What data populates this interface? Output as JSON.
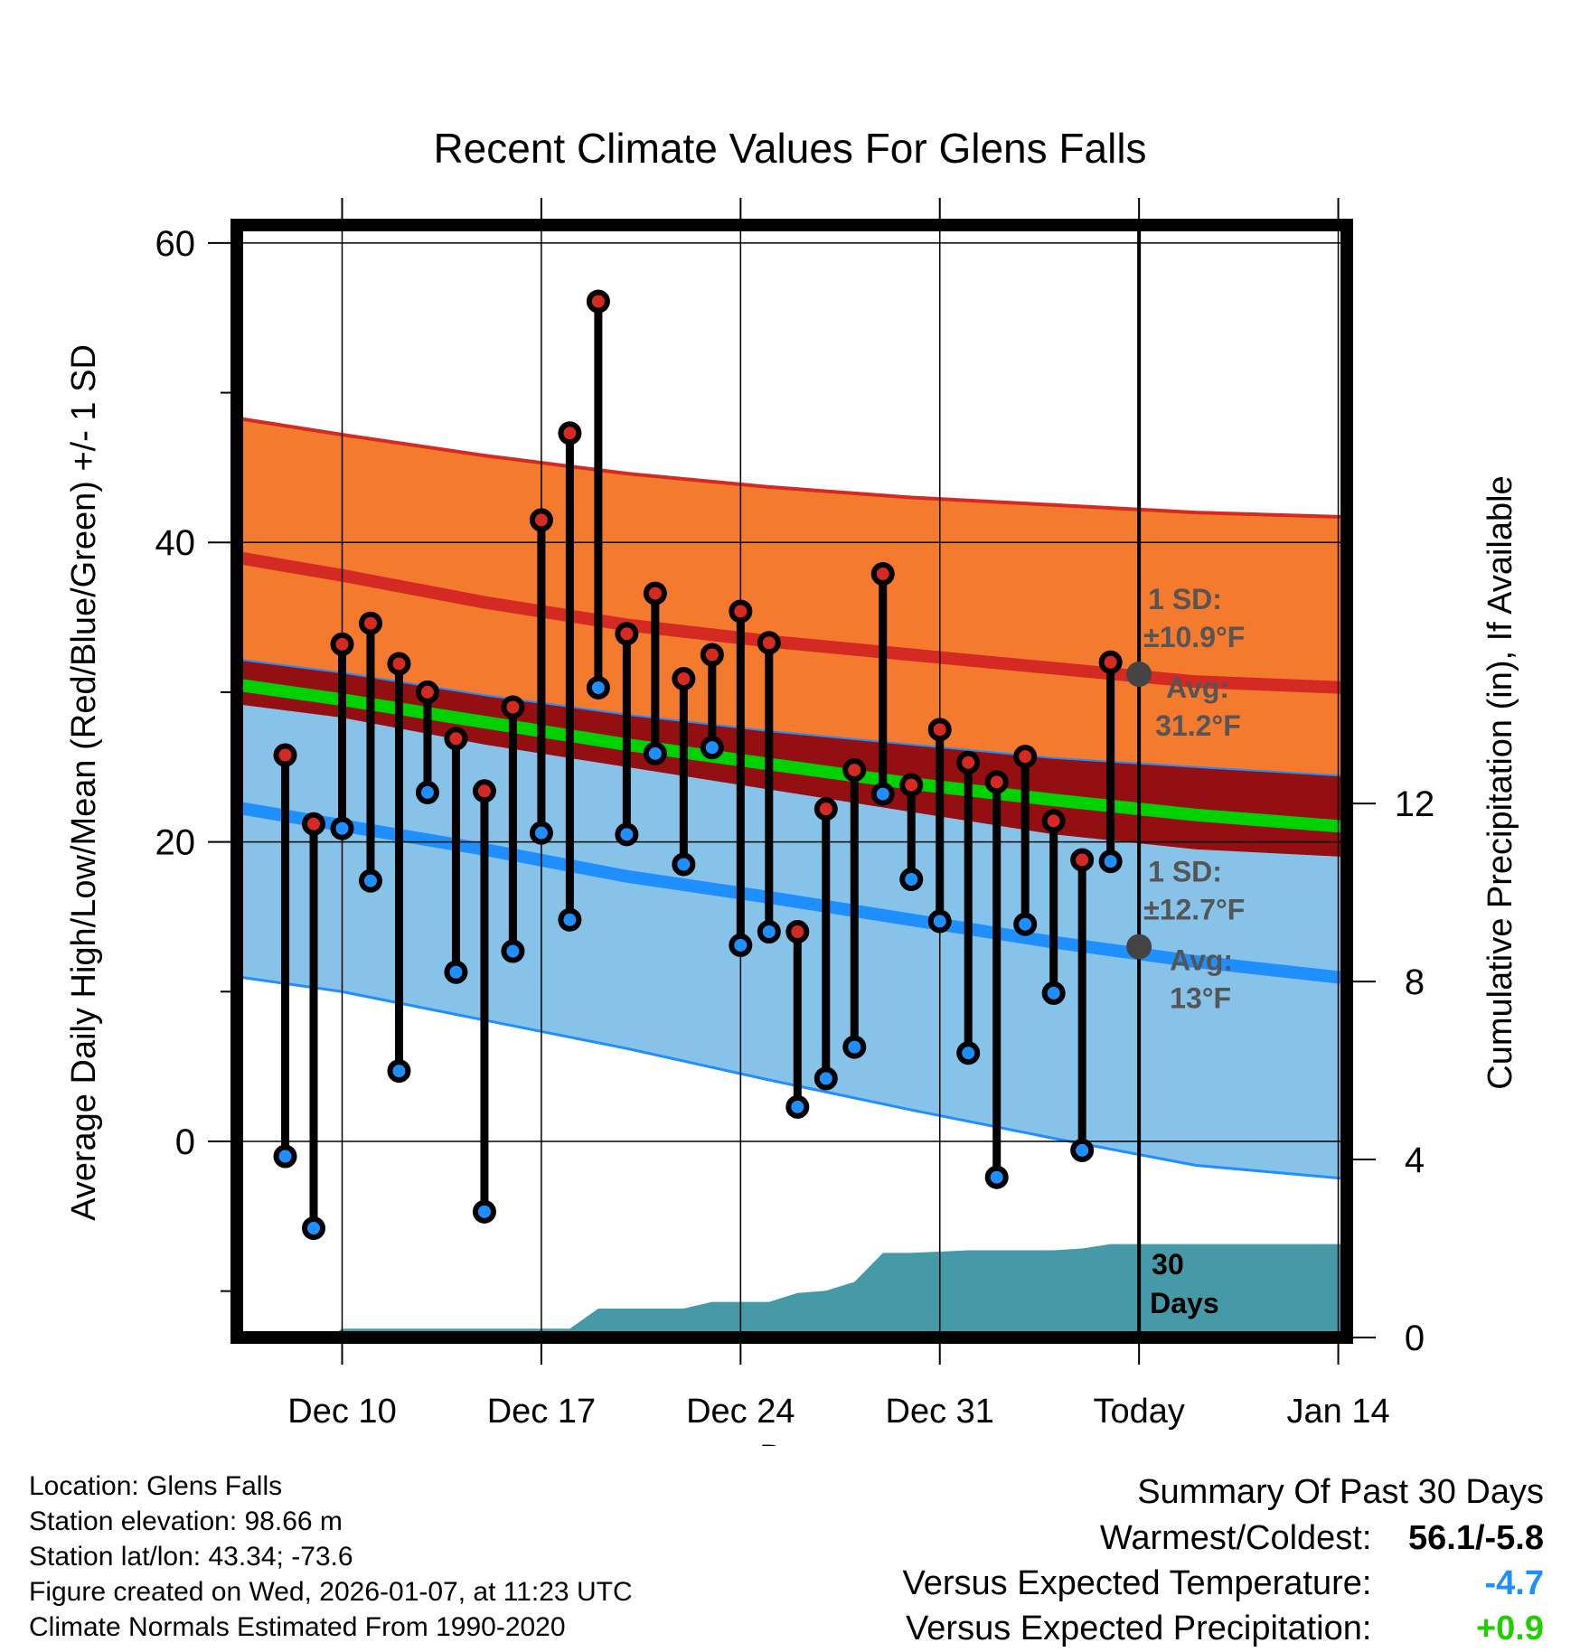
{
  "chart_data": {
    "type": "line",
    "title": "Recent Climate Values For Glens Falls",
    "xlabel": "Day",
    "ylabel": "Average Daily High/Low/Mean (Red/Blue/Green) +/- 1 SD",
    "y2label": "Cumulative Precipitation (in), If Available",
    "xlim": [
      6.3,
      45.3
    ],
    "ylim": [
      -13.1,
      61.2
    ],
    "y2lim": [
      0,
      25
    ],
    "x_ticks": [
      10,
      17,
      24,
      31,
      38,
      45
    ],
    "x_tick_labels": [
      "Dec 10",
      "Dec 17",
      "Dec 24",
      "Dec 31",
      "Today",
      "Jan 14"
    ],
    "y_ticks": [
      0,
      20,
      40,
      60
    ],
    "y_tick_labels": [
      "0",
      "20",
      "40",
      "60"
    ],
    "y_minor_ticks": [
      -10,
      10,
      30,
      50
    ],
    "y2_ticks": [
      0,
      4,
      8,
      12
    ],
    "y2_tick_labels": [
      "0",
      "4",
      "8",
      "12"
    ],
    "today_x": 38,
    "today_label_lines": [
      "30",
      "Days"
    ],
    "normals": {
      "x": [
        6.3,
        10,
        15,
        20,
        25,
        30,
        35,
        40,
        45.3
      ],
      "high_avg": [
        39.0,
        37.8,
        36.0,
        34.5,
        33.4,
        32.5,
        31.6,
        30.7,
        30.3
      ],
      "high_sd_upper": [
        48.3,
        47.2,
        45.8,
        44.6,
        43.7,
        43.0,
        42.5,
        42.0,
        41.7
      ],
      "high_sd_lower": [
        32.2,
        31.3,
        29.8,
        28.5,
        27.4,
        26.5,
        25.6,
        25.0,
        24.4
      ],
      "mean_avg": [
        30.5,
        29.5,
        28.0,
        26.5,
        25.2,
        23.9,
        22.8,
        21.8,
        21.0
      ],
      "low_avg": [
        22.3,
        21.1,
        19.5,
        17.7,
        16.3,
        14.8,
        13.3,
        12.0,
        10.9
      ],
      "low_sd_upper": [
        29.2,
        28.3,
        26.5,
        25.0,
        23.5,
        22.0,
        20.5,
        19.5,
        19.0
      ],
      "low_sd_lower": [
        11.0,
        10.0,
        8.1,
        6.2,
        4.1,
        2.1,
        0.2,
        -1.6,
        -2.5
      ]
    },
    "colors": {
      "high_band": "#f47a2e",
      "high_line": "#d52a23",
      "overlap_band": "#930f12",
      "mean_line": "#00d100",
      "low_band": "#87c2e8",
      "low_line": "#1f8fff",
      "precip_fill": "#4699a6",
      "high_marker": "#d52a23",
      "low_marker": "#1f8fff",
      "avg_marker": "#444444",
      "annotation": "#555555",
      "below_normal": "#1f8fff",
      "above_normal": "#1fcf00"
    },
    "daily": {
      "x": [
        8,
        9,
        10,
        11,
        12,
        13,
        14,
        15,
        16,
        17,
        18,
        19,
        20,
        21,
        22,
        23,
        24,
        25,
        26,
        27,
        28,
        29,
        30,
        31,
        32,
        33,
        34,
        35,
        36,
        37
      ],
      "high": [
        25.8,
        21.2,
        33.2,
        34.6,
        31.9,
        30.0,
        26.9,
        23.4,
        29.0,
        41.5,
        47.3,
        56.1,
        33.9,
        36.6,
        30.9,
        32.5,
        35.4,
        33.3,
        14.0,
        22.2,
        24.8,
        37.9,
        23.8,
        27.5,
        25.3,
        24.0,
        25.7,
        21.4,
        18.8,
        32.0
      ],
      "low": [
        -1.0,
        -5.8,
        20.9,
        17.4,
        4.7,
        23.3,
        11.3,
        -4.7,
        12.7,
        20.6,
        14.8,
        30.3,
        20.5,
        25.9,
        18.5,
        26.3,
        13.1,
        14.0,
        2.3,
        4.2,
        6.3,
        23.2,
        17.5,
        14.7,
        5.9,
        -2.4,
        14.5,
        9.9,
        -0.6,
        18.7
      ]
    },
    "precip": {
      "x": [
        6.3,
        9.5,
        10,
        14,
        17,
        18,
        19,
        20,
        21,
        22,
        23,
        24,
        25,
        26,
        27,
        28,
        29,
        30,
        31,
        32,
        33,
        34,
        35,
        36,
        37,
        38,
        45.3
      ],
      "values": [
        0,
        0,
        0.2,
        0.2,
        0.2,
        0.2,
        0.65,
        0.65,
        0.65,
        0.65,
        0.8,
        0.8,
        0.8,
        1.0,
        1.05,
        1.25,
        1.9,
        1.9,
        1.93,
        1.96,
        1.96,
        1.96,
        1.96,
        2.0,
        2.1,
        2.1,
        2.1
      ]
    },
    "annotations": {
      "high": {
        "x": 38,
        "avg": 31.2,
        "sd_line1": "1 SD:",
        "sd_line2": "±10.9°F",
        "avg_line1": "Avg:",
        "avg_line2": "31.2°F"
      },
      "low": {
        "x": 38,
        "avg": 13.0,
        "sd_line1": "1 SD:",
        "sd_line2": "±12.7°F",
        "avg_line1": "Avg:",
        "avg_line2": "13°F"
      }
    }
  },
  "footer": {
    "location": "Location: Glens Falls",
    "elevation": "Station elevation: 98.66 m",
    "latlon": "Station lat/lon: 43.34; -73.6",
    "created": "Figure created on Wed, 2026-01-07, at 11:23 UTC",
    "normals": "Climate Normals Estimated From 1990-2020"
  },
  "summary": {
    "title": "Summary Of Past 30 Days",
    "warmest_coldest_label": "Warmest/Coldest:",
    "warmest_coldest_value": "56.1/-5.8",
    "temp_label": "Versus Expected Temperature:",
    "temp_value": "-4.7",
    "precip_label": "Versus Expected Precipitation:",
    "precip_value": "+0.9"
  }
}
